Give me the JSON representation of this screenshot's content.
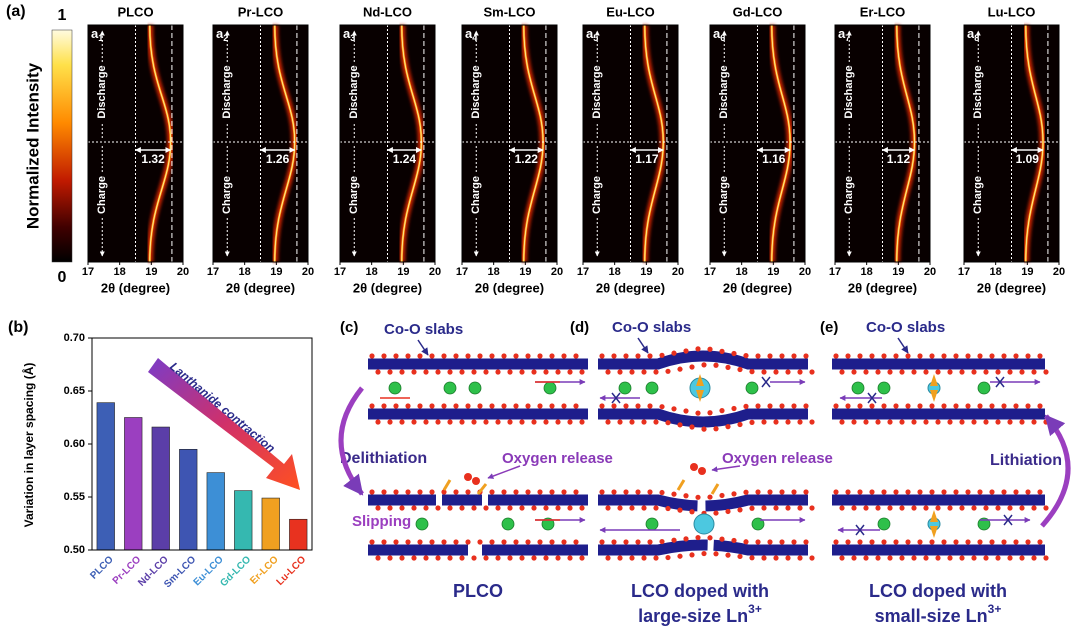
{
  "panel_a": {
    "label": "(a)",
    "colorbar": {
      "title": "Normalized Intensity",
      "max": "1",
      "min": "0"
    },
    "x_label": "2θ (degree)",
    "xticks": [
      17,
      18,
      19,
      20
    ],
    "discharge": "Discharge",
    "charge": "Charge",
    "maps": [
      {
        "name": "PLCO",
        "letter": "a",
        "index": "1",
        "shift": 1.32
      },
      {
        "name": "Pr-LCO",
        "letter": "a",
        "index": "2",
        "shift": 1.26
      },
      {
        "name": "Nd-LCO",
        "letter": "a",
        "index": "3",
        "shift": 1.24
      },
      {
        "name": "Sm-LCO",
        "letter": "a",
        "index": "4",
        "shift": 1.22
      },
      {
        "name": "Eu-LCO",
        "letter": "a",
        "index": "5",
        "shift": 1.17
      },
      {
        "name": "Gd-LCO",
        "letter": "a",
        "index": "6",
        "shift": 1.16
      },
      {
        "name": "Er-LCO",
        "letter": "a",
        "index": "7",
        "shift": 1.12
      },
      {
        "name": "Lu-LCO",
        "letter": "a",
        "index": "8",
        "shift": 1.09
      }
    ]
  },
  "chart_data": {
    "type": "bar",
    "label": "(b)",
    "y_label": "Variation in layer spacing (Å)",
    "categories": [
      "PLCO",
      "Pr-LCO",
      "Nd-LCO",
      "Sm-LCO",
      "Eu-LCO",
      "Gd-LCO",
      "Er-LCO",
      "Lu-LCO"
    ],
    "values": [
      0.639,
      0.625,
      0.616,
      0.595,
      0.573,
      0.556,
      0.549,
      0.529
    ],
    "colors": [
      "#3d5fb5",
      "#9b3fc0",
      "#5b3ea8",
      "#3e55b2",
      "#3d8fd6",
      "#35b8b0",
      "#f0a020",
      "#e8321f"
    ],
    "ylim": [
      0.5,
      0.7
    ],
    "yticks": [
      {
        "value": 0.5,
        "label": "0.50"
      },
      {
        "value": 0.55,
        "label": "0.55"
      },
      {
        "value": 0.6,
        "label": "0.60"
      },
      {
        "value": 0.65,
        "label": "0.65"
      },
      {
        "value": 0.7,
        "label": "0.70"
      }
    ],
    "annotation": "Lanthanide contraction"
  },
  "panel_c": {
    "label": "(c)",
    "slabs": "Co-O slabs",
    "process": "Delithiation",
    "oxygen": "Oxygen release",
    "slipping": "Slipping",
    "caption": "PLCO"
  },
  "panel_d": {
    "label": "(d)",
    "slabs": "Co-O slabs",
    "oxygen": "Oxygen release",
    "caption_1": "LCO doped with",
    "caption_2": "large-size Ln",
    "charge": "3+"
  },
  "panel_e": {
    "label": "(e)",
    "slabs": "Co-O slabs",
    "process": "Lithiation",
    "caption_1": "LCO doped with",
    "caption_2": "small-size Ln",
    "charge": "3+"
  }
}
